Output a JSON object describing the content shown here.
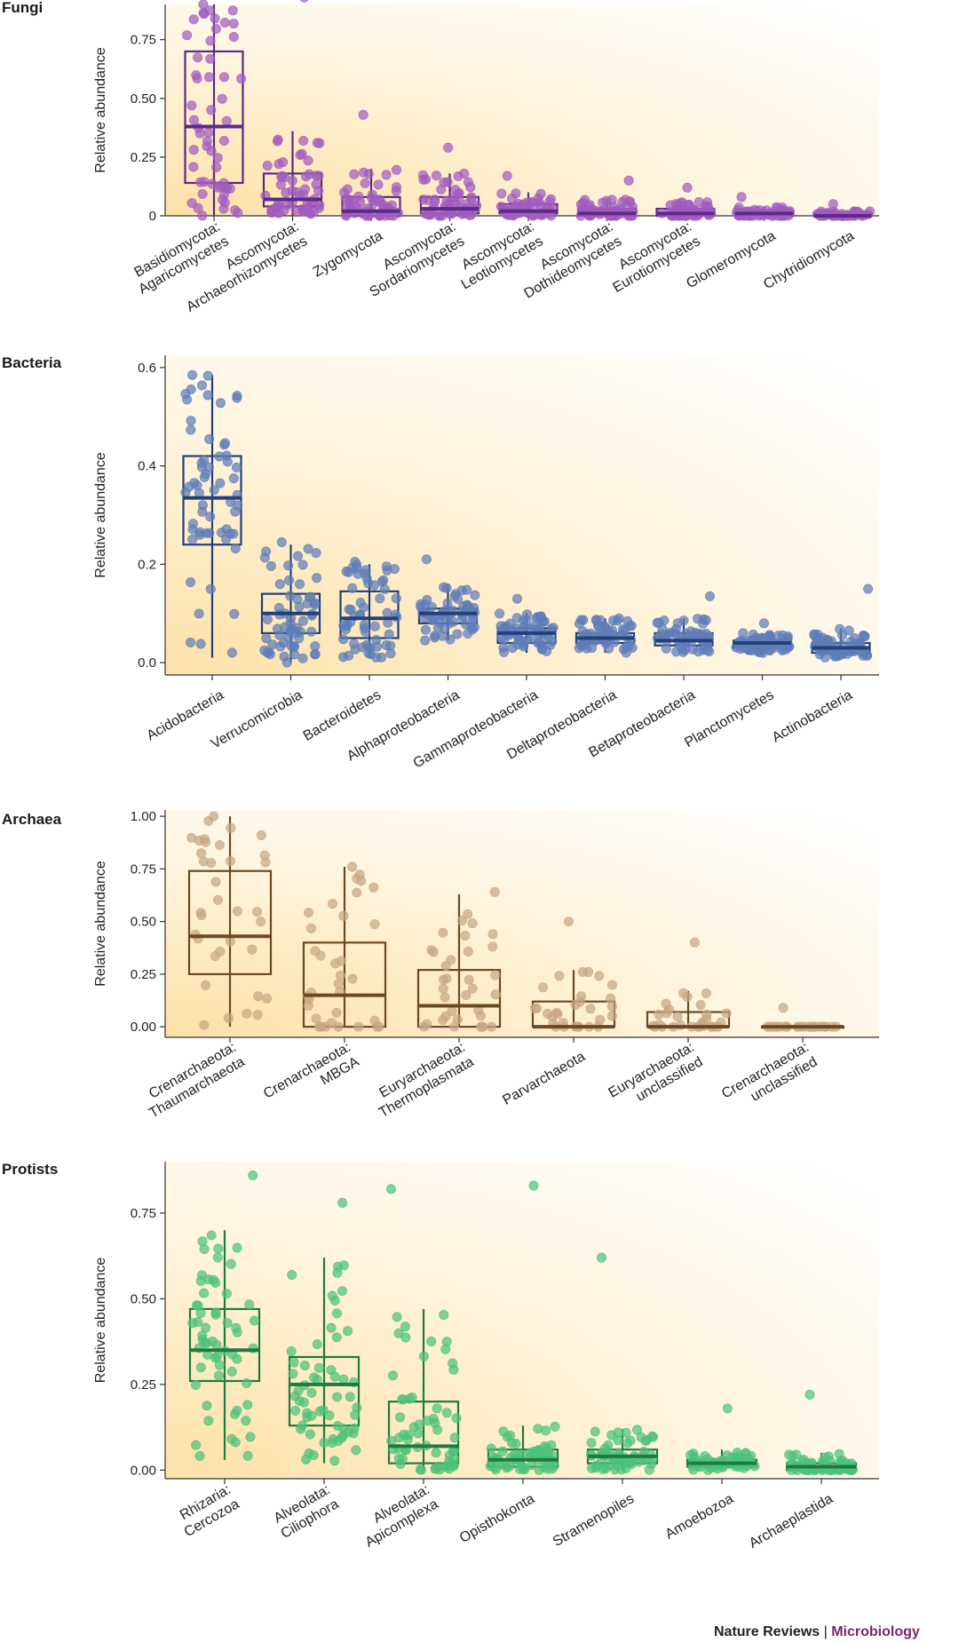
{
  "chart_data": [
    {
      "type": "box",
      "title": "Fungi",
      "ylabel": "Relative abundance",
      "ylim": [
        0,
        0.9
      ],
      "yticks": [
        "0",
        "0.25",
        "0.50",
        "0.75"
      ],
      "color": "#5b2a86",
      "point_color": "#a15bbf",
      "categories": [
        [
          "Basidiomycota:",
          "Agaricomycetes"
        ],
        [
          "Ascomycota:",
          "Archaeorhizomycetes"
        ],
        [
          "Zygomycota"
        ],
        [
          "Ascomycota:",
          "Sordariomycetes"
        ],
        [
          "Ascomycota:",
          "Leotiomycetes"
        ],
        [
          "Ascomycota:",
          "Dothideomycetes"
        ],
        [
          "Ascomycota:",
          "Eurotiomycetes"
        ],
        [
          "Glomeromycota"
        ],
        [
          "Chytridiomycota"
        ]
      ],
      "boxes": [
        {
          "min": 0.0,
          "q1": 0.14,
          "median": 0.38,
          "q3": 0.7,
          "max": 0.9,
          "max_point": 0.9,
          "n": 55
        },
        {
          "min": 0.0,
          "q1": 0.04,
          "median": 0.07,
          "q3": 0.18,
          "max": 0.36,
          "max_point": 0.93,
          "n": 55
        },
        {
          "min": 0.0,
          "q1": 0.0,
          "median": 0.02,
          "q3": 0.08,
          "max": 0.2,
          "max_point": 0.43,
          "n": 55
        },
        {
          "min": 0.0,
          "q1": 0.01,
          "median": 0.03,
          "q3": 0.08,
          "max": 0.18,
          "max_point": 0.29,
          "n": 55
        },
        {
          "min": 0.0,
          "q1": 0.01,
          "median": 0.02,
          "q3": 0.05,
          "max": 0.1,
          "max_point": 0.17,
          "n": 55
        },
        {
          "min": 0.0,
          "q1": 0.0,
          "median": 0.01,
          "q3": 0.03,
          "max": 0.07,
          "max_point": 0.15,
          "n": 55
        },
        {
          "min": 0.0,
          "q1": 0.0,
          "median": 0.01,
          "q3": 0.03,
          "max": 0.06,
          "max_point": 0.12,
          "n": 55
        },
        {
          "min": 0.0,
          "q1": 0.0,
          "median": 0.01,
          "q3": 0.02,
          "max": 0.04,
          "max_point": 0.08,
          "n": 55
        },
        {
          "min": 0.0,
          "q1": 0.0,
          "median": 0.0,
          "q3": 0.01,
          "max": 0.02,
          "max_point": 0.05,
          "n": 55
        }
      ]
    },
    {
      "type": "box",
      "title": "Bacteria",
      "ylabel": "Relative abundance",
      "ylim": [
        -0.025,
        0.625
      ],
      "yticks": [
        "0.0",
        "0.2",
        "0.4",
        "0.6"
      ],
      "color": "#23407a",
      "point_color": "#5e7db8",
      "categories": [
        [
          "Acidobacteria"
        ],
        [
          "Verrucomicrobia"
        ],
        [
          "Bacteroidetes"
        ],
        [
          "Alphaproteobacteria"
        ],
        [
          "Gammaproteobacteria"
        ],
        [
          "Deltaproteobacteria"
        ],
        [
          "Betaproteobacteria"
        ],
        [
          "Planctomycetes"
        ],
        [
          "Actinobacteria"
        ]
      ],
      "boxes": [
        {
          "min": 0.01,
          "q1": 0.24,
          "median": 0.335,
          "q3": 0.42,
          "max": 0.585,
          "max_point": 0.585,
          "n": 60
        },
        {
          "min": 0.0,
          "q1": 0.06,
          "median": 0.1,
          "q3": 0.14,
          "max": 0.24,
          "max_point": 0.245,
          "n": 60
        },
        {
          "min": 0.01,
          "q1": 0.05,
          "median": 0.09,
          "q3": 0.145,
          "max": 0.2,
          "max_point": 0.205,
          "n": 60
        },
        {
          "min": 0.045,
          "q1": 0.08,
          "median": 0.1,
          "q3": 0.11,
          "max": 0.16,
          "max_point": 0.21,
          "n": 60
        },
        {
          "min": 0.02,
          "q1": 0.04,
          "median": 0.06,
          "q3": 0.07,
          "max": 0.1,
          "max_point": 0.13,
          "n": 60
        },
        {
          "min": 0.02,
          "q1": 0.04,
          "median": 0.05,
          "q3": 0.06,
          "max": 0.09,
          "max_point": 0.09,
          "n": 60
        },
        {
          "min": 0.02,
          "q1": 0.035,
          "median": 0.045,
          "q3": 0.06,
          "max": 0.09,
          "max_point": 0.135,
          "n": 60
        },
        {
          "min": 0.02,
          "q1": 0.03,
          "median": 0.04,
          "q3": 0.045,
          "max": 0.06,
          "max_point": 0.08,
          "n": 60
        },
        {
          "min": 0.01,
          "q1": 0.02,
          "median": 0.03,
          "q3": 0.04,
          "max": 0.07,
          "max_point": 0.15,
          "n": 60
        }
      ]
    },
    {
      "type": "box",
      "title": "Archaea",
      "ylabel": "Relative abundance",
      "ylim": [
        -0.05,
        1.03
      ],
      "yticks": [
        "0.00",
        "0.25",
        "0.50",
        "0.75",
        "1.00"
      ],
      "color": "#6b4a22",
      "point_color": "#c8a684",
      "categories": [
        [
          "Crenarchaeota:",
          "Thaumarchaeota"
        ],
        [
          "Crenarchaeota:",
          "MBGA"
        ],
        [
          "Euryarchaeota:",
          "Thermoplasmata"
        ],
        [
          "Parvarchaeota"
        ],
        [
          "Euryarchaeota:",
          "unclassified"
        ],
        [
          "Crenarchaeota:",
          "unclassified"
        ]
      ],
      "boxes": [
        {
          "min": 0.0,
          "q1": 0.25,
          "median": 0.43,
          "q3": 0.74,
          "max": 1.0,
          "max_point": 1.0,
          "n": 35
        },
        {
          "min": 0.0,
          "q1": 0.0,
          "median": 0.15,
          "q3": 0.4,
          "max": 0.76,
          "max_point": 0.76,
          "n": 35
        },
        {
          "min": 0.0,
          "q1": 0.0,
          "median": 0.1,
          "q3": 0.27,
          "max": 0.63,
          "max_point": 0.64,
          "n": 35
        },
        {
          "min": 0.0,
          "q1": 0.0,
          "median": 0.0,
          "q3": 0.12,
          "max": 0.27,
          "max_point": 0.5,
          "n": 30
        },
        {
          "min": 0.0,
          "q1": 0.0,
          "median": 0.0,
          "q3": 0.07,
          "max": 0.17,
          "max_point": 0.4,
          "n": 30
        },
        {
          "min": 0.0,
          "q1": 0.0,
          "median": 0.0,
          "q3": 0.0,
          "max": 0.0,
          "max_point": 0.09,
          "n": 25
        }
      ]
    },
    {
      "type": "box",
      "title": "Protists",
      "ylabel": "Relative abundance",
      "ylim": [
        -0.025,
        0.9
      ],
      "yticks": [
        "0.00",
        "0.25",
        "0.50",
        "0.75"
      ],
      "color": "#1f7a40",
      "point_color": "#4cc27a",
      "categories": [
        [
          "Rhizaria:",
          "Cercozoa"
        ],
        [
          "Alveolata:",
          "Ciliophora"
        ],
        [
          "Alveolata:",
          "Apicomplexa"
        ],
        [
          "Opisthokonta"
        ],
        [
          "Stramenopiles"
        ],
        [
          "Amoebozoa"
        ],
        [
          "Archaeplastida"
        ]
      ],
      "boxes": [
        {
          "min": 0.03,
          "q1": 0.26,
          "median": 0.35,
          "q3": 0.47,
          "max": 0.7,
          "max_point": 0.86,
          "n": 60
        },
        {
          "min": 0.02,
          "q1": 0.13,
          "median": 0.25,
          "q3": 0.33,
          "max": 0.62,
          "max_point": 0.78,
          "n": 60
        },
        {
          "min": 0.0,
          "q1": 0.02,
          "median": 0.07,
          "q3": 0.2,
          "max": 0.47,
          "max_point": 0.82,
          "n": 60
        },
        {
          "min": 0.0,
          "q1": 0.01,
          "median": 0.03,
          "q3": 0.06,
          "max": 0.13,
          "max_point": 0.83,
          "n": 60
        },
        {
          "min": 0.0,
          "q1": 0.02,
          "median": 0.04,
          "q3": 0.06,
          "max": 0.12,
          "max_point": 0.62,
          "n": 60
        },
        {
          "min": 0.0,
          "q1": 0.01,
          "median": 0.02,
          "q3": 0.03,
          "max": 0.06,
          "max_point": 0.18,
          "n": 60
        },
        {
          "min": 0.0,
          "q1": 0.0,
          "median": 0.01,
          "q3": 0.02,
          "max": 0.05,
          "max_point": 0.22,
          "n": 60
        }
      ]
    }
  ],
  "footer": {
    "journal": "Nature Reviews",
    "separator": " | ",
    "section": "Microbiology"
  }
}
